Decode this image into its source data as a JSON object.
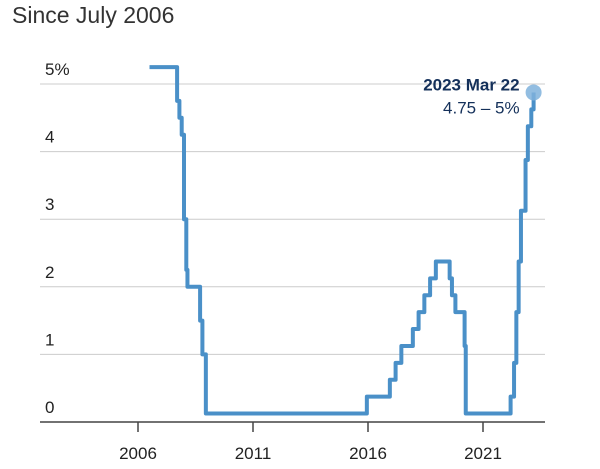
{
  "title": "Since July 2006",
  "colors": {
    "line": "#4a90c8",
    "marker": "#7fb2dc",
    "annotation": "#14305a",
    "grid": "#cccccc"
  },
  "chart_data": {
    "type": "line",
    "step": true,
    "title": "Since July 2006",
    "ylim": [
      0,
      5.25
    ],
    "xlim": [
      2004.4,
      2024.6
    ],
    "grid": true,
    "y_ticks": [
      {
        "value": 0,
        "label": "0"
      },
      {
        "value": 1,
        "label": "1"
      },
      {
        "value": 2,
        "label": "2"
      },
      {
        "value": 3,
        "label": "3"
      },
      {
        "value": 4,
        "label": "4"
      },
      {
        "value": 5,
        "label": "5%"
      }
    ],
    "x_ticks": [
      {
        "value": 2006,
        "label": "2006"
      },
      {
        "value": 2011,
        "label": "2011"
      },
      {
        "value": 2016,
        "label": "2016"
      },
      {
        "value": 2021,
        "label": "2021"
      }
    ],
    "series": [
      {
        "x": [
          2006.5,
          2007.7,
          2007.8,
          2007.9,
          2008.0,
          2008.1,
          2008.15,
          2008.25,
          2008.3,
          2008.7,
          2008.8,
          2008.95,
          2015.95,
          2016.95,
          2017.2,
          2017.45,
          2017.95,
          2018.2,
          2018.45,
          2018.7,
          2018.95,
          2019.55,
          2019.65,
          2019.8,
          2020.2,
          2020.25,
          2022.2,
          2022.35,
          2022.45,
          2022.55,
          2022.65,
          2022.85,
          2022.95,
          2023.1,
          2023.2
        ],
        "y": [
          5.25,
          4.75,
          4.5,
          4.25,
          3.0,
          2.25,
          2.0,
          2.0,
          2.0,
          1.5,
          1.0,
          0.125,
          0.375,
          0.625,
          0.875,
          1.125,
          1.375,
          1.625,
          1.875,
          2.125,
          2.375,
          2.125,
          1.875,
          1.625,
          1.125,
          0.125,
          0.375,
          0.875,
          1.625,
          2.375,
          3.125,
          3.875,
          4.375,
          4.625,
          4.875
        ]
      }
    ],
    "annotation": {
      "date": "2023 Mar 22",
      "range": "4.75 – 5%",
      "x": 2023.2,
      "y": 4.875
    }
  }
}
